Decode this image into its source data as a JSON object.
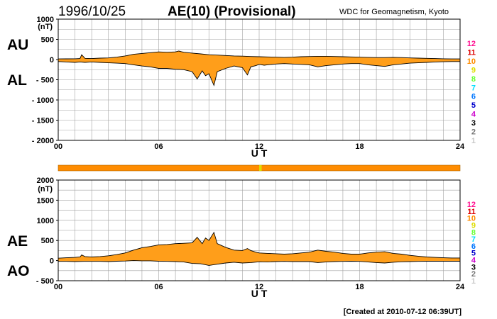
{
  "header": {
    "date": "1996/10/25",
    "title": "AE(10) (Provisional)",
    "source": "WDC for Geomagnetism, Kyoto"
  },
  "footer": {
    "created": "[Created at 2010-07-12 06:39UT]"
  },
  "colors": {
    "fill": "#ff9e1a",
    "line": "#000000",
    "grid": "#a0a0a0"
  },
  "station_scale": [
    {
      "label": "12",
      "color": "#ff1493"
    },
    {
      "label": "11",
      "color": "#dd0000"
    },
    {
      "label": "10",
      "color": "#ff8c00"
    },
    {
      "label": "9",
      "color": "#dddd00"
    },
    {
      "label": "8",
      "color": "#66ff33"
    },
    {
      "label": "7",
      "color": "#00ddff"
    },
    {
      "label": "6",
      "color": "#0077ff"
    },
    {
      "label": "5",
      "color": "#0000cc"
    },
    {
      "label": "4",
      "color": "#cc00cc"
    },
    {
      "label": "3",
      "color": "#000000"
    },
    {
      "label": "2",
      "color": "#777777"
    },
    {
      "label": "1",
      "color": "#c8c8c8"
    }
  ],
  "station_bar": {
    "base_value": 10,
    "segments": [
      {
        "from": 12.0,
        "to": 12.15,
        "value": 9
      }
    ]
  },
  "chart_data": [
    {
      "type": "area",
      "xlabel": "U T",
      "xlim": [
        0,
        24
      ],
      "xticks": [
        0,
        6,
        12,
        18,
        24
      ],
      "xtick_labels": [
        "00",
        "06",
        "12",
        "18",
        "24"
      ],
      "ylim": [
        -2000,
        1000
      ],
      "yticks": [
        1000,
        500,
        0,
        -500,
        -1000,
        -1500,
        -2000
      ],
      "ytick_labels": [
        "1000",
        "500",
        "0",
        "- 500",
        "- 1000",
        "- 1500",
        "- 2000"
      ],
      "yunit": "(nT)",
      "series": [
        {
          "name": "AU",
          "x": [
            0,
            0.5,
            1,
            1.3,
            1.4,
            1.6,
            2,
            2.5,
            3,
            3.5,
            4,
            4.5,
            5,
            5.5,
            6,
            6.5,
            7,
            7.2,
            7.5,
            8,
            8.5,
            9,
            9.5,
            10,
            10.5,
            11,
            11.5,
            12,
            12.5,
            13,
            13.5,
            14,
            14.5,
            15,
            15.5,
            16,
            16.5,
            17,
            17.5,
            18,
            18.5,
            19,
            19.5,
            20,
            20.5,
            21,
            21.5,
            22,
            22.5,
            23,
            23.5,
            24
          ],
          "y": [
            15,
            18,
            20,
            25,
            120,
            30,
            25,
            35,
            40,
            60,
            90,
            130,
            150,
            170,
            190,
            180,
            190,
            210,
            180,
            160,
            140,
            120,
            110,
            100,
            90,
            85,
            75,
            70,
            65,
            60,
            55,
            60,
            70,
            75,
            80,
            80,
            75,
            70,
            65,
            60,
            55,
            50,
            50,
            55,
            50,
            40,
            35,
            30,
            25,
            20,
            15,
            15
          ]
        },
        {
          "name": "AL",
          "x": [
            0,
            0.5,
            1,
            1.3,
            1.6,
            2,
            2.5,
            3,
            3.5,
            4,
            4.5,
            5,
            5.5,
            6,
            6.5,
            7,
            7.5,
            8,
            8.3,
            8.6,
            8.8,
            9,
            9.3,
            9.5,
            10,
            10.5,
            11,
            11.3,
            11.5,
            11.8,
            12,
            12.3,
            12.5,
            13,
            13.5,
            14,
            14.5,
            15,
            15.5,
            16,
            16.5,
            17,
            17.5,
            18,
            18.5,
            19,
            19.5,
            20,
            20.5,
            21,
            21.5,
            22,
            22.5,
            23,
            23.5,
            24
          ],
          "y": [
            -50,
            -60,
            -70,
            -60,
            -70,
            -60,
            -70,
            -80,
            -90,
            -100,
            -130,
            -160,
            -180,
            -220,
            -220,
            -240,
            -250,
            -300,
            -480,
            -280,
            -400,
            -350,
            -640,
            -300,
            -220,
            -160,
            -200,
            -380,
            -180,
            -150,
            -120,
            -140,
            -130,
            -110,
            -100,
            -110,
            -120,
            -130,
            -180,
            -150,
            -130,
            -110,
            -100,
            -100,
            -130,
            -150,
            -170,
            -130,
            -110,
            -90,
            -80,
            -70,
            -60,
            -55,
            -50,
            -50
          ]
        }
      ]
    },
    {
      "type": "area",
      "xlabel": "U T",
      "xlim": [
        0,
        24
      ],
      "xticks": [
        0,
        6,
        12,
        18,
        24
      ],
      "xtick_labels": [
        "00",
        "06",
        "12",
        "18",
        "24"
      ],
      "ylim": [
        -500,
        2000
      ],
      "yticks": [
        2000,
        1500,
        1000,
        500,
        0,
        -500
      ],
      "ytick_labels": [
        "2000",
        "1500",
        "1000",
        "500",
        "0",
        "- 500"
      ],
      "yunit": "(nT)",
      "series": [
        {
          "name": "AE",
          "x": [
            0,
            0.5,
            1,
            1.3,
            1.4,
            1.6,
            2,
            2.5,
            3,
            3.5,
            4,
            4.5,
            5,
            5.5,
            6,
            6.5,
            7,
            7.5,
            8,
            8.3,
            8.6,
            8.8,
            9,
            9.3,
            9.5,
            10,
            10.5,
            11,
            11.3,
            11.5,
            11.8,
            12,
            12.5,
            13,
            13.5,
            14,
            14.5,
            15,
            15.5,
            16,
            16.5,
            17,
            17.5,
            18,
            18.5,
            19,
            19.5,
            20,
            20.5,
            21,
            21.5,
            22,
            22.5,
            23,
            23.5,
            24
          ],
          "y": [
            60,
            70,
            80,
            90,
            140,
            100,
            90,
            100,
            120,
            150,
            190,
            260,
            320,
            350,
            390,
            400,
            420,
            430,
            440,
            580,
            420,
            560,
            500,
            700,
            420,
            330,
            260,
            250,
            300,
            250,
            210,
            190,
            180,
            170,
            160,
            170,
            190,
            210,
            260,
            230,
            210,
            180,
            160,
            160,
            190,
            210,
            220,
            180,
            160,
            130,
            110,
            90,
            80,
            70,
            65,
            65
          ]
        },
        {
          "name": "AO",
          "x": [
            0,
            0.5,
            1,
            1.5,
            2,
            2.5,
            3,
            3.5,
            4,
            4.5,
            5,
            5.5,
            6,
            6.5,
            7,
            7.5,
            8,
            8.5,
            9,
            9.5,
            10,
            10.5,
            11,
            11.5,
            12,
            12.5,
            13,
            13.5,
            14,
            14.5,
            15,
            15.5,
            16,
            16.5,
            17,
            17.5,
            18,
            18.5,
            19,
            19.5,
            20,
            20.5,
            21,
            21.5,
            22,
            22.5,
            23,
            23.5,
            24
          ],
          "y": [
            -20,
            -20,
            -25,
            -20,
            -20,
            -20,
            -25,
            -15,
            -10,
            0,
            -5,
            -5,
            -15,
            -20,
            -25,
            -35,
            -70,
            -80,
            -120,
            -90,
            -60,
            -40,
            -60,
            -50,
            -30,
            -35,
            -25,
            -20,
            -25,
            -25,
            -25,
            -50,
            -35,
            -25,
            -20,
            -15,
            -20,
            -35,
            -50,
            -60,
            -40,
            -30,
            -25,
            -20,
            -15,
            -15,
            -15,
            -15,
            -15
          ]
        }
      ]
    }
  ]
}
